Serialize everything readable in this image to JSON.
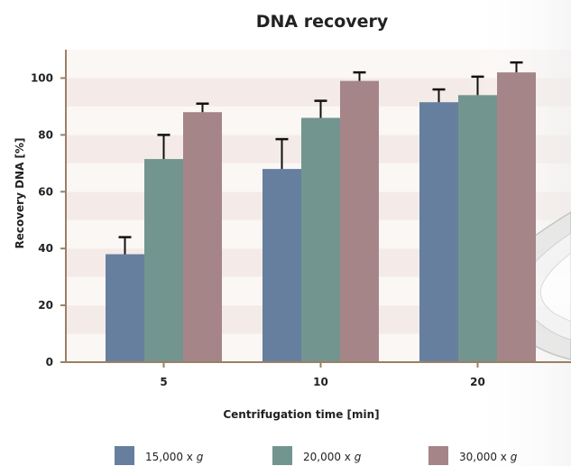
{
  "chart_data": {
    "type": "bar",
    "title": "DNA recovery",
    "xlabel": "Centrifugation time [min]",
    "ylabel": "Recovery DNA [%]",
    "categories": [
      "5",
      "10",
      "20"
    ],
    "ylim": [
      0,
      110
    ],
    "yticks": [
      0,
      20,
      40,
      60,
      80,
      100
    ],
    "grid": "alternating horizontal bands",
    "legend_position": "bottom",
    "series": [
      {
        "name": "15,000 x g",
        "color": "#667f9f",
        "values": [
          38,
          68,
          91.5
        ],
        "errors": [
          6,
          10.5,
          4.5
        ]
      },
      {
        "name": "20,000 x g",
        "color": "#73958f",
        "values": [
          71.5,
          86,
          94
        ],
        "errors": [
          8.5,
          6,
          6.5
        ]
      },
      {
        "name": "30,000 x g",
        "color": "#a58588",
        "values": [
          88,
          99,
          102
        ],
        "errors": [
          3,
          3,
          3.5
        ]
      }
    ]
  },
  "colors": {
    "band_light": "#fbf7f5",
    "band_dark": "#f4ebe8",
    "axis": "#9a8066",
    "error_bar": "#111111"
  }
}
